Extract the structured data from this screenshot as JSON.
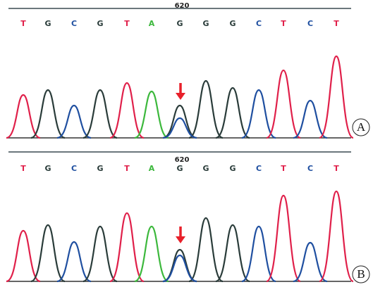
{
  "panels": [
    {
      "position_label": "620",
      "label": "A",
      "bases": [
        {
          "letter": "T",
          "color": "#e0204a"
        },
        {
          "letter": "G",
          "color": "#2a3c3a"
        },
        {
          "letter": "C",
          "color": "#1f4fa0"
        },
        {
          "letter": "G",
          "color": "#2a3c3a"
        },
        {
          "letter": "T",
          "color": "#e0204a"
        },
        {
          "letter": "A",
          "color": "#3cb83c"
        },
        {
          "letter": "G",
          "color": "#2a3c3a"
        },
        {
          "letter": "G",
          "color": "#2a3c3a"
        },
        {
          "letter": "G",
          "color": "#2a3c3a"
        },
        {
          "letter": "C",
          "color": "#1f4fa0"
        },
        {
          "letter": "T",
          "color": "#e0204a"
        },
        {
          "letter": "C",
          "color": "#1f4fa0"
        },
        {
          "letter": "T",
          "color": "#e0204a"
        }
      ]
    },
    {
      "position_label": "620",
      "label": "B",
      "bases": [
        {
          "letter": "T",
          "color": "#e0204a"
        },
        {
          "letter": "G",
          "color": "#2a3c3a"
        },
        {
          "letter": "C",
          "color": "#1f4fa0"
        },
        {
          "letter": "G",
          "color": "#2a3c3a"
        },
        {
          "letter": "T",
          "color": "#e0204a"
        },
        {
          "letter": "A",
          "color": "#3cb83c"
        },
        {
          "letter": "G",
          "color": "#2a3c3a"
        },
        {
          "letter": "G",
          "color": "#2a3c3a"
        },
        {
          "letter": "G",
          "color": "#2a3c3a"
        },
        {
          "letter": "C",
          "color": "#1f4fa0"
        },
        {
          "letter": "T",
          "color": "#e0204a"
        },
        {
          "letter": "C",
          "color": "#1f4fa0"
        },
        {
          "letter": "T",
          "color": "#e0204a"
        }
      ]
    }
  ]
}
